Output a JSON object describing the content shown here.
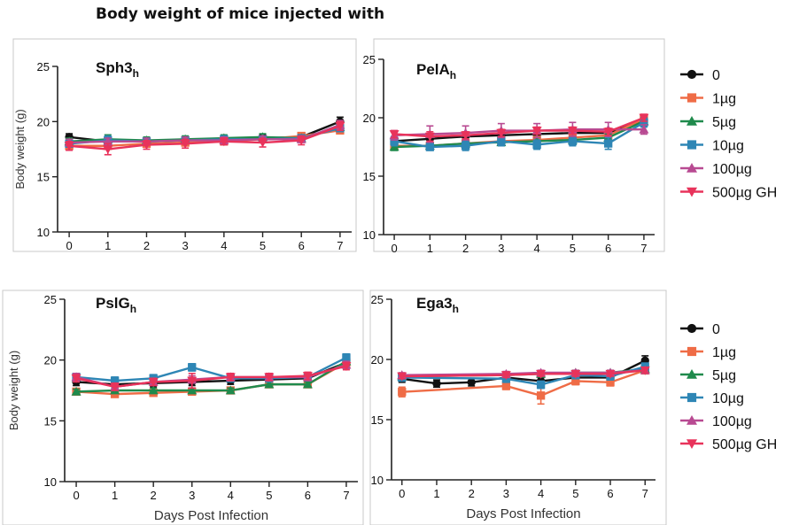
{
  "page_title": "Body weight of mice injected with",
  "series_styles": [
    {
      "name": "0",
      "color": "#111111",
      "marker": "circle"
    },
    {
      "name": "1µg",
      "color": "#ef6c46",
      "marker": "square"
    },
    {
      "name": "5µg",
      "color": "#1f8a4c",
      "marker": "triangle-up"
    },
    {
      "name": "10µg",
      "color": "#2e86b5",
      "marker": "square"
    },
    {
      "name": "100µg",
      "color": "#b84a92",
      "marker": "triangle-up"
    },
    {
      "name": "500µg GH",
      "color": "#e8335b",
      "marker": "triangle-down"
    }
  ],
  "chart_data": [
    {
      "type": "line",
      "title": "Sph3",
      "title_sub": "h",
      "xlabel": "",
      "ylabel": "Body weight (g)",
      "x": [
        0,
        1,
        2,
        3,
        4,
        5,
        6,
        7
      ],
      "xlim": [
        -0.3,
        7.3
      ],
      "ylim": [
        10,
        25
      ],
      "yticks": [
        10,
        15,
        20,
        25
      ],
      "legend": false,
      "series": [
        {
          "values": [
            18.6,
            18.2,
            18.2,
            18.3,
            18.4,
            18.5,
            18.6,
            20.0
          ],
          "errors": [
            0.3,
            0.3,
            0.3,
            0.3,
            0.3,
            0.3,
            0.3,
            0.4
          ]
        },
        {
          "values": [
            17.8,
            17.8,
            18.0,
            18.1,
            18.2,
            18.4,
            18.7,
            19.2
          ],
          "errors": [
            0.3,
            0.3,
            0.3,
            0.3,
            0.3,
            0.3,
            0.3,
            0.3
          ]
        },
        {
          "values": [
            18.2,
            18.4,
            18.3,
            18.4,
            18.5,
            18.6,
            18.5,
            19.5
          ],
          "errors": [
            0.3,
            0.4,
            0.3,
            0.3,
            0.3,
            0.3,
            0.3,
            0.4
          ]
        },
        {
          "values": [
            18.0,
            18.3,
            18.2,
            18.3,
            18.4,
            18.4,
            18.5,
            19.4
          ],
          "errors": [
            0.3,
            0.4,
            0.3,
            0.3,
            0.3,
            0.3,
            0.3,
            0.3
          ]
        },
        {
          "values": [
            18.1,
            18.2,
            18.2,
            18.3,
            18.3,
            18.4,
            18.4,
            19.7
          ],
          "errors": [
            0.3,
            0.3,
            0.3,
            0.3,
            0.3,
            0.3,
            0.3,
            0.4
          ]
        },
        {
          "values": [
            17.8,
            17.5,
            17.9,
            18.0,
            18.2,
            18.1,
            18.3,
            19.6
          ],
          "errors": [
            0.4,
            0.5,
            0.4,
            0.4,
            0.3,
            0.4,
            0.4,
            0.4
          ]
        }
      ]
    },
    {
      "type": "line",
      "title": "PelA",
      "title_sub": "h",
      "xlabel": "",
      "ylabel": "",
      "x": [
        0,
        1,
        2,
        3,
        4,
        5,
        6,
        7
      ],
      "xlim": [
        -0.3,
        7.3
      ],
      "ylim": [
        10,
        25
      ],
      "yticks": [
        10,
        15,
        20,
        25
      ],
      "legend": true,
      "series": [
        {
          "values": [
            18.0,
            18.2,
            18.4,
            18.5,
            18.6,
            18.7,
            18.7,
            19.8
          ],
          "errors": [
            0.3,
            0.3,
            0.3,
            0.3,
            0.3,
            0.3,
            0.3,
            0.3
          ]
        },
        {
          "values": [
            17.6,
            17.6,
            17.8,
            18.0,
            18.1,
            18.3,
            18.5,
            19.9
          ],
          "errors": [
            0.3,
            0.3,
            0.3,
            0.3,
            0.3,
            0.3,
            0.3,
            0.3
          ]
        },
        {
          "values": [
            17.5,
            17.6,
            17.8,
            17.9,
            18.0,
            18.1,
            18.3,
            19.7
          ],
          "errors": [
            0.3,
            0.3,
            0.3,
            0.3,
            0.3,
            0.3,
            0.3,
            0.3
          ]
        },
        {
          "values": [
            18.0,
            17.5,
            17.6,
            18.0,
            17.7,
            18.0,
            17.8,
            19.6
          ],
          "errors": [
            0.4,
            0.3,
            0.4,
            0.4,
            0.4,
            0.4,
            0.5,
            0.4
          ]
        },
        {
          "values": [
            18.5,
            18.6,
            18.7,
            18.9,
            18.9,
            19.0,
            19.0,
            19.0
          ],
          "errors": [
            0.4,
            0.7,
            0.6,
            0.6,
            0.6,
            0.6,
            0.6,
            0.4
          ]
        },
        {
          "values": [
            18.6,
            18.4,
            18.5,
            18.7,
            18.9,
            18.9,
            18.8,
            20.0
          ],
          "errors": [
            0.3,
            0.4,
            0.3,
            0.3,
            0.3,
            0.3,
            0.3,
            0.3
          ]
        }
      ]
    },
    {
      "type": "line",
      "title": "PslG",
      "title_sub": "h",
      "xlabel": "Days Post Infection",
      "ylabel": "Body weight (g)",
      "x": [
        0,
        1,
        2,
        3,
        4,
        5,
        6,
        7
      ],
      "xlim": [
        -0.3,
        7.3
      ],
      "ylim": [
        10,
        25
      ],
      "yticks": [
        10,
        15,
        20,
        25
      ],
      "legend": false,
      "series": [
        {
          "values": [
            18.2,
            18.0,
            18.1,
            18.2,
            18.3,
            18.4,
            18.5,
            19.8
          ],
          "errors": [
            0.3,
            0.3,
            0.3,
            0.3,
            0.3,
            0.3,
            0.3,
            0.4
          ]
        },
        {
          "values": [
            17.4,
            17.2,
            17.3,
            17.4,
            17.5,
            18.0,
            18.0,
            19.8
          ],
          "errors": [
            0.2,
            0.2,
            0.2,
            0.2,
            0.2,
            0.2,
            0.2,
            0.3
          ]
        },
        {
          "values": [
            17.4,
            17.5,
            17.5,
            17.5,
            17.5,
            18.0,
            18.0,
            19.9
          ],
          "errors": [
            0.2,
            0.2,
            0.2,
            0.2,
            0.2,
            0.2,
            0.2,
            0.3
          ]
        },
        {
          "values": [
            18.6,
            18.3,
            18.5,
            19.4,
            18.5,
            18.5,
            18.6,
            20.2
          ],
          "errors": [
            0.3,
            0.3,
            0.3,
            0.3,
            0.3,
            0.3,
            0.3,
            0.3
          ]
        },
        {
          "values": [
            18.6,
            17.8,
            18.2,
            18.4,
            18.6,
            18.6,
            18.6,
            19.6
          ],
          "errors": [
            0.3,
            0.3,
            0.3,
            0.3,
            0.3,
            0.3,
            0.3,
            0.3
          ]
        },
        {
          "values": [
            18.5,
            17.8,
            18.2,
            18.3,
            18.6,
            18.6,
            18.7,
            19.5
          ],
          "errors": [
            0.3,
            0.3,
            0.3,
            0.6,
            0.3,
            0.3,
            0.3,
            0.3
          ]
        }
      ]
    },
    {
      "type": "line",
      "title": "Ega3",
      "title_sub": "h",
      "xlabel": "Days Post Infection",
      "ylabel": "",
      "x": [
        0,
        1,
        2,
        3,
        4,
        5,
        6,
        7
      ],
      "xlim": [
        -0.3,
        7.3
      ],
      "ylim": [
        10,
        25
      ],
      "yticks": [
        10,
        15,
        20,
        25
      ],
      "legend": true,
      "series": [
        {
          "values": [
            18.4,
            18.0,
            18.1,
            18.5,
            18.2,
            18.5,
            18.5,
            19.9
          ],
          "errors": [
            0.3,
            0.3,
            0.3,
            0.3,
            0.3,
            0.3,
            0.3,
            0.4
          ]
        },
        {
          "values": [
            17.3,
            null,
            null,
            17.8,
            17.0,
            18.2,
            18.1,
            19.1
          ],
          "errors": [
            0.4,
            0,
            0,
            0.3,
            0.7,
            0.3,
            0.3,
            0.3
          ]
        },
        {
          "values": [
            18.6,
            null,
            null,
            18.7,
            18.8,
            18.9,
            18.9,
            19.2
          ],
          "errors": [
            0.2,
            0,
            0,
            0.2,
            0.2,
            0.2,
            0.2,
            0.2
          ]
        },
        {
          "values": [
            18.5,
            null,
            null,
            18.4,
            17.9,
            18.7,
            18.6,
            19.4
          ],
          "errors": [
            0.3,
            0,
            0,
            0.3,
            0.3,
            0.3,
            0.3,
            0.3
          ]
        },
        {
          "values": [
            18.7,
            null,
            null,
            18.8,
            18.9,
            18.9,
            18.9,
            19.1
          ],
          "errors": [
            0.2,
            0,
            0,
            0.2,
            0.2,
            0.2,
            0.2,
            0.2
          ]
        },
        {
          "values": [
            18.6,
            null,
            null,
            18.7,
            18.8,
            18.8,
            18.8,
            19.1
          ],
          "errors": [
            0.2,
            0,
            0,
            0.2,
            0.2,
            0.2,
            0.2,
            0.2
          ]
        }
      ]
    }
  ]
}
